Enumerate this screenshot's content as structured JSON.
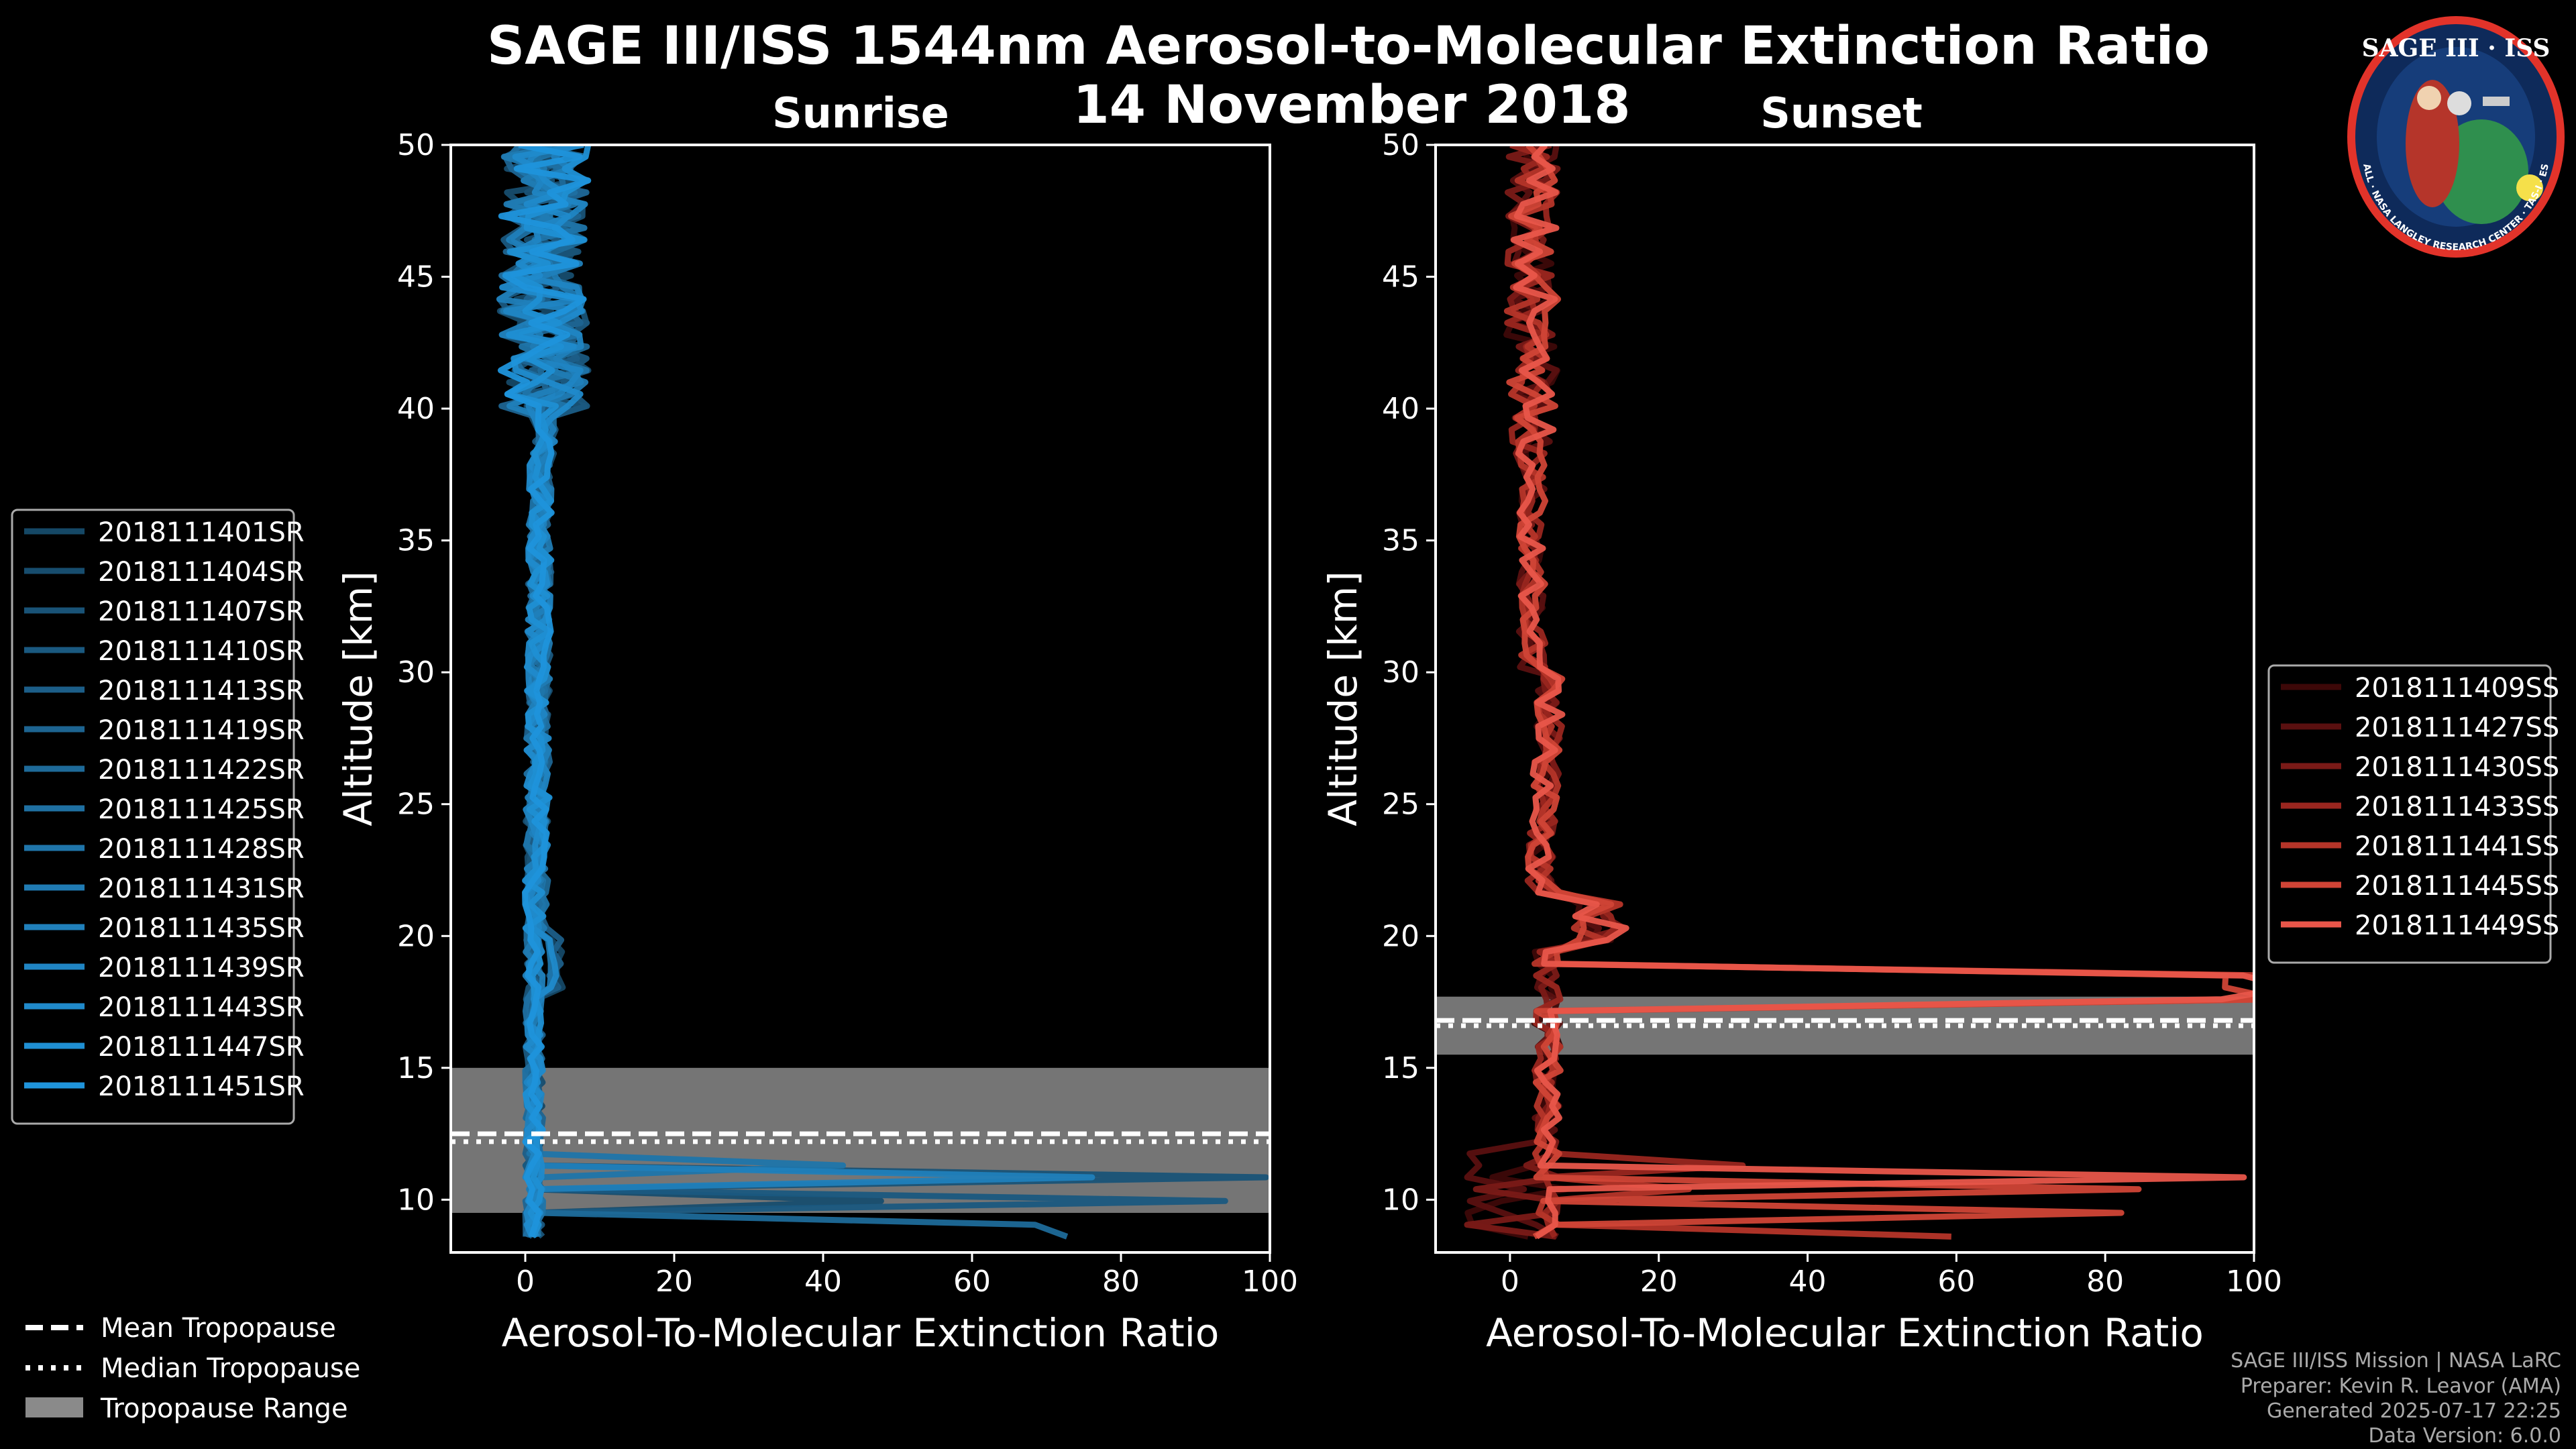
{
  "title": "SAGE III/ISS 1544nm Aerosol-to-Molecular Extinction Ratio",
  "date": "14 November 2018",
  "footer": [
    "SAGE III/ISS Mission | NASA LaRC",
    "Preparer: Kevin R. Leavor (AMA)",
    "Generated 2025-07-17 22:25",
    "Data Version: 6.0.0"
  ],
  "logo": {
    "title": "SAGE III · ISS",
    "ring_text": "BALL · NASA LANGLEY RESEARCH CENTER · TAS-I · ESA"
  },
  "colors": {
    "sunrise": "#1f8fd3",
    "sunset": "#e8564a",
    "tropopause": "#8a8a8a",
    "background": "#000000"
  },
  "chart_data": [
    {
      "type": "line",
      "title": "Sunrise",
      "xlabel": "Aerosol-To-Molecular Extinction Ratio",
      "ylabel": "Altitude [km]",
      "xlim": [
        -10,
        100
      ],
      "ylim": [
        8,
        50
      ],
      "xticks": [
        0,
        20,
        40,
        60,
        80,
        100
      ],
      "yticks": [
        10,
        15,
        20,
        25,
        30,
        35,
        40,
        45,
        50
      ],
      "legend_position": "left",
      "tropopause": {
        "mean": 12.5,
        "median": 12.2,
        "range": [
          9.5,
          15.0
        ]
      },
      "series": [
        {
          "name": "2018111401SR",
          "color": "#154866"
        },
        {
          "name": "2018111404SR",
          "color": "#174d6e"
        },
        {
          "name": "2018111407SR",
          "color": "#195377"
        },
        {
          "name": "2018111410SR",
          "color": "#1a5980"
        },
        {
          "name": "2018111413SR",
          "color": "#1c5e88"
        },
        {
          "name": "2018111419SR",
          "color": "#1d6491"
        },
        {
          "name": "2018111422SR",
          "color": "#1e6a99"
        },
        {
          "name": "2018111425SR",
          "color": "#1f70a2"
        },
        {
          "name": "2018111428SR",
          "color": "#1f75aa"
        },
        {
          "name": "2018111431SR",
          "color": "#207bb3"
        },
        {
          "name": "2018111435SR",
          "color": "#2080bb"
        },
        {
          "name": "2018111439SR",
          "color": "#2085c3"
        },
        {
          "name": "2018111443SR",
          "color": "#208acb"
        },
        {
          "name": "2018111447SR",
          "color": "#1f8fd3"
        },
        {
          "name": "2018111451SR",
          "color": "#1f94db"
        }
      ]
    },
    {
      "type": "line",
      "title": "Sunset",
      "xlabel": "Aerosol-To-Molecular Extinction Ratio",
      "ylabel": "Altitude [km]",
      "xlim": [
        -10,
        100
      ],
      "ylim": [
        8,
        50
      ],
      "xticks": [
        0,
        20,
        40,
        60,
        80,
        100
      ],
      "yticks": [
        10,
        15,
        20,
        25,
        30,
        35,
        40,
        45,
        50
      ],
      "legend_position": "right",
      "tropopause": {
        "mean": 16.8,
        "median": 16.6,
        "range": [
          15.5,
          17.7
        ]
      },
      "series": [
        {
          "name": "2018111409SS",
          "color": "#3d0808"
        },
        {
          "name": "2018111427SS",
          "color": "#5a1010"
        },
        {
          "name": "2018111430SS",
          "color": "#7a1a17"
        },
        {
          "name": "2018111433SS",
          "color": "#99261f"
        },
        {
          "name": "2018111441SS",
          "color": "#b53529"
        },
        {
          "name": "2018111445SS",
          "color": "#d04436"
        },
        {
          "name": "2018111449SS",
          "color": "#e8564a"
        }
      ]
    }
  ],
  "legend_tropopause": [
    {
      "label": "Mean Tropopause",
      "style": "dashed"
    },
    {
      "label": "Median Tropopause",
      "style": "dotted"
    },
    {
      "label": "Tropopause Range",
      "style": "patch"
    }
  ]
}
